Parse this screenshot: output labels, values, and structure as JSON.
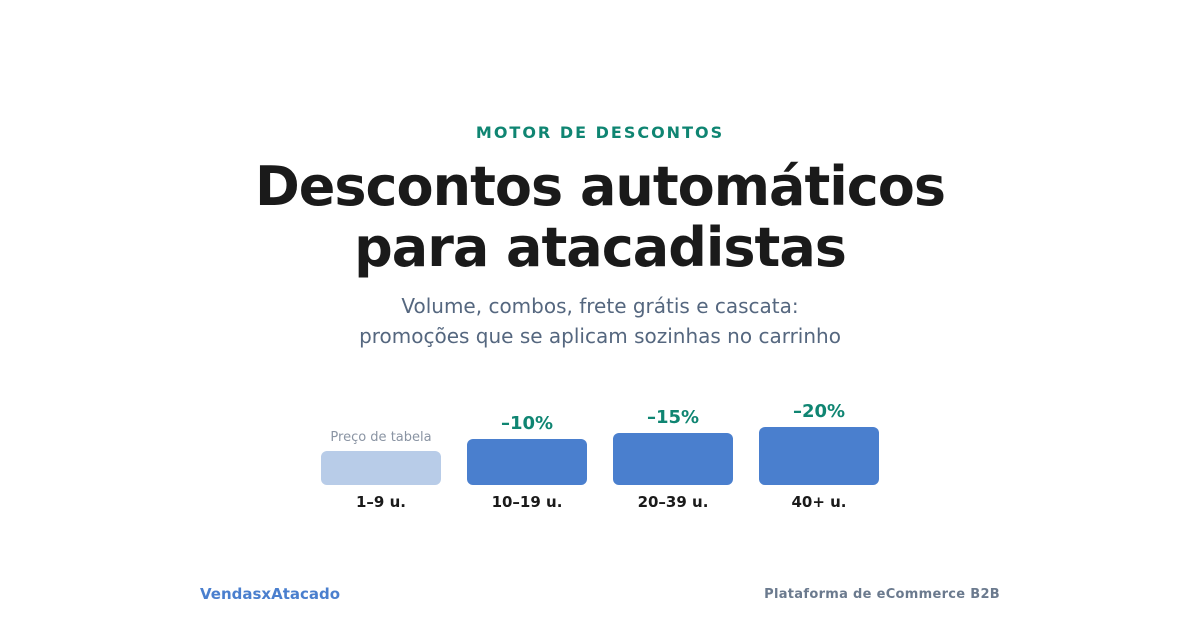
{
  "eyebrow": "MOTOR DE DESCONTOS",
  "title": {
    "line1": "Descontos automáticos",
    "line2": "para atacadistas"
  },
  "subtitle": {
    "line1": "Volume, combos, frete grátis e cascata:",
    "line2": "promoções que se aplicam sozinhas no carrinho"
  },
  "chart_data": {
    "type": "bar",
    "categories": [
      "1–9 u.",
      "10–19 u.",
      "20–39 u.",
      "40+ u."
    ],
    "values": [
      0,
      10,
      15,
      20
    ],
    "data_labels": [
      "Preço de tabela",
      "–10%",
      "–15%",
      "–20%"
    ],
    "colors": {
      "base": "#b8cce8",
      "discount": "#4a7fce",
      "label_base": "#8a94a3",
      "label_discount": "#0f8572"
    }
  },
  "footer": {
    "brand": "VendasxAtacado",
    "tagline": "Plataforma de eCommerce B2B"
  }
}
